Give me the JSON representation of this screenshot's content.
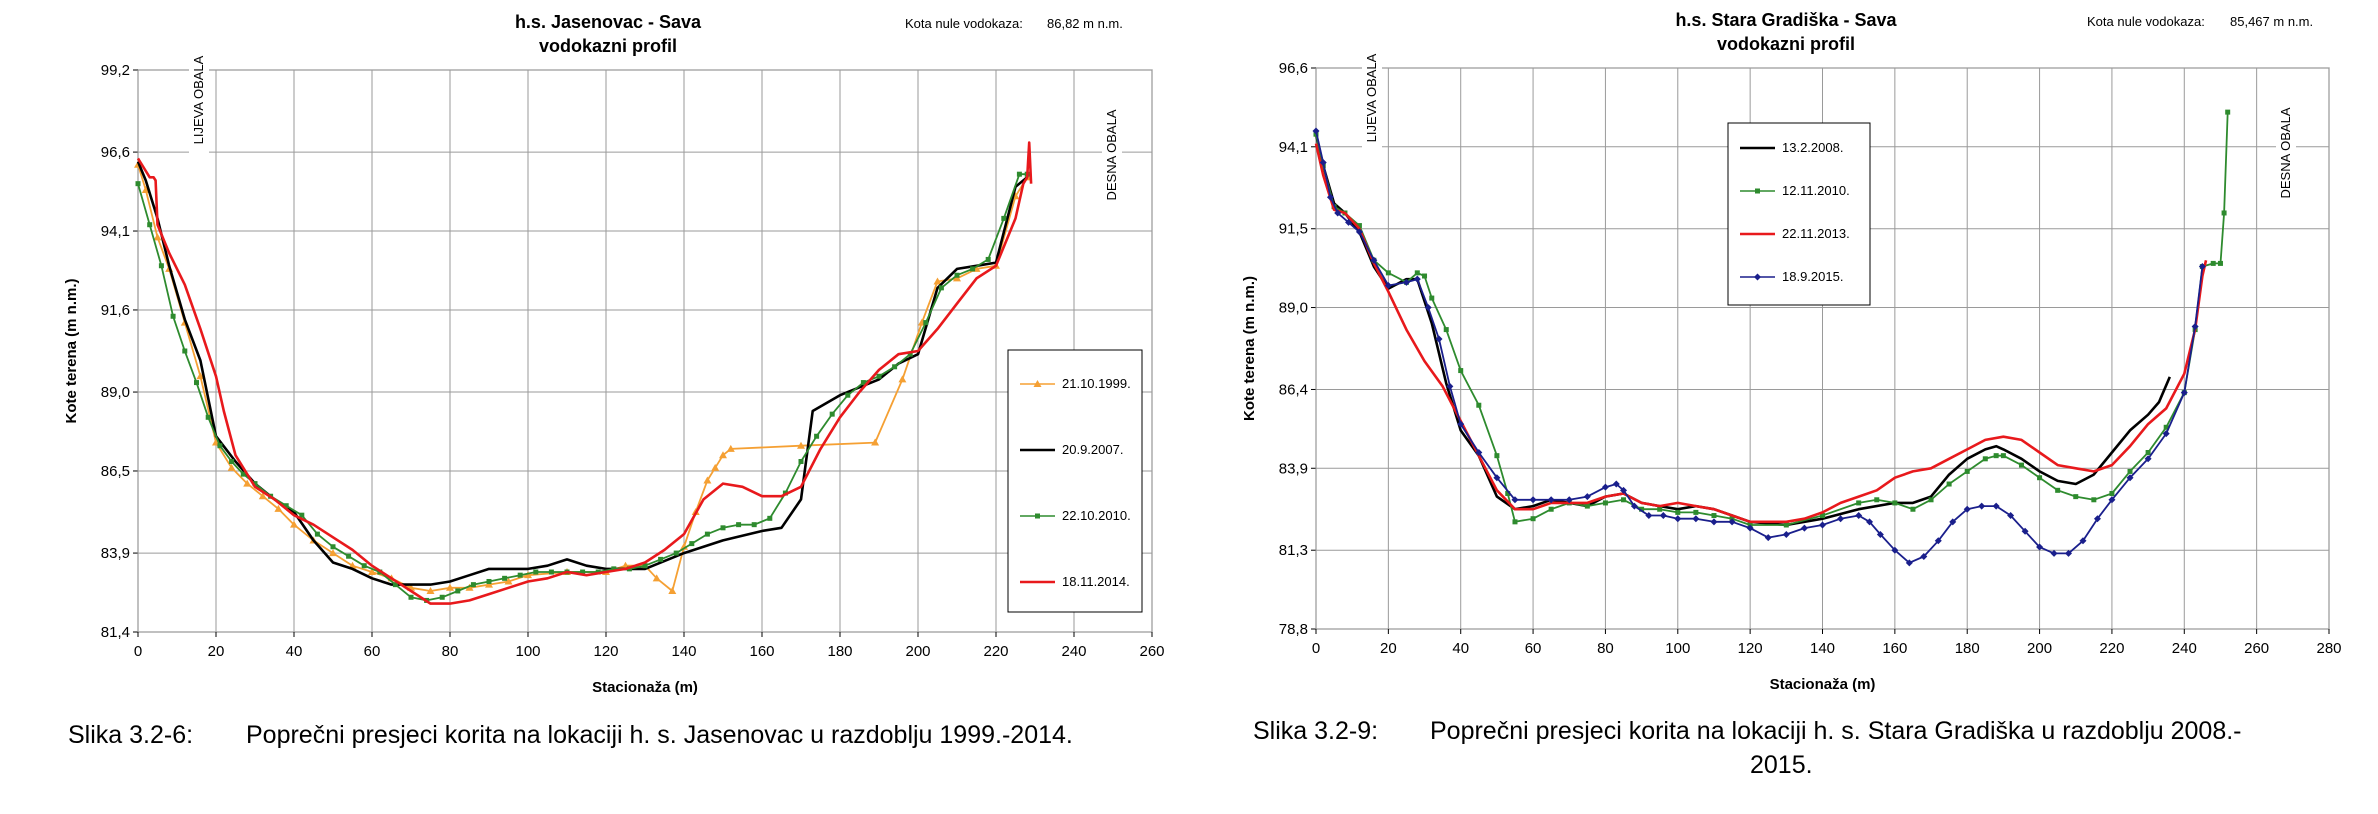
{
  "captions": [
    {
      "label": "Slika 3.2-6:",
      "text": "Poprečni presjeci korita na lokaciji h. s. Jasenovac u razdoblju 1999.-2014.",
      "text2": ""
    },
    {
      "label": "Slika 3.2-9:",
      "text": "Poprečni presjeci korita na lokaciji h. s. Stara Gradiška u razdoblju 2008.-",
      "text2": "2015."
    }
  ],
  "chart_data": [
    {
      "type": "line",
      "title": "h.s. Jasenovac - Sava",
      "subtitle": "vodokazni profil",
      "note_label": "Kota nule vodokaza:",
      "note_value": "86,82 m n.m.",
      "xlabel": "Stacionaža (m)",
      "ylabel": "Kote terena (m n.m.)",
      "xlim": [
        0,
        260
      ],
      "ylim": [
        81.4,
        99.2
      ],
      "xticks": [
        0,
        20,
        40,
        60,
        80,
        100,
        120,
        140,
        160,
        180,
        200,
        220,
        240,
        260
      ],
      "yticks": [
        81.4,
        83.9,
        86.5,
        89.0,
        91.6,
        94.1,
        96.6,
        99.2
      ],
      "ytick_labels": [
        "81,4",
        "83,9",
        "86,5",
        "89,0",
        "91,6",
        "94,1",
        "96,6",
        "99,2"
      ],
      "bank_left": "LIJEVA OBALA",
      "bank_right": "DESNA OBALA",
      "legend_position": "right",
      "series": [
        {
          "name": "21.10.1999.",
          "color": "#f5a033",
          "marker": "triangle",
          "x": [
            0,
            2,
            5,
            8,
            12,
            16,
            20,
            24,
            28,
            32,
            36,
            40,
            45,
            50,
            55,
            60,
            65,
            70,
            75,
            80,
            85,
            90,
            95,
            100,
            110,
            120,
            125,
            130,
            133,
            137,
            140,
            143,
            146,
            148,
            150,
            152,
            170,
            189,
            196,
            201,
            205,
            210,
            215,
            220,
            225,
            228
          ],
          "y": [
            96.2,
            95.4,
            93.9,
            92.9,
            91.2,
            89.5,
            87.4,
            86.6,
            86.1,
            85.7,
            85.3,
            84.8,
            84.3,
            83.9,
            83.5,
            83.3,
            83.1,
            82.8,
            82.7,
            82.8,
            82.8,
            82.9,
            83.0,
            83.2,
            83.3,
            83.3,
            83.5,
            83.5,
            83.1,
            82.7,
            84.1,
            85.2,
            86.2,
            86.6,
            87.0,
            87.2,
            87.3,
            87.4,
            89.4,
            91.2,
            92.5,
            92.6,
            92.9,
            93.0,
            95.2,
            95.8
          ]
        },
        {
          "name": "20.9.2007.",
          "color": "#000000",
          "marker": "none",
          "x": [
            0,
            2,
            5,
            8,
            12,
            16,
            20,
            25,
            30,
            35,
            40,
            45,
            50,
            55,
            60,
            65,
            70,
            75,
            80,
            85,
            90,
            95,
            100,
            105,
            110,
            115,
            120,
            130,
            140,
            150,
            160,
            165,
            170,
            173,
            180,
            190,
            195,
            200,
            205,
            210,
            215,
            220,
            225,
            228
          ],
          "y": [
            96.3,
            95.7,
            94.5,
            93.0,
            91.3,
            90.0,
            87.6,
            86.8,
            86.1,
            85.6,
            85.2,
            84.3,
            83.6,
            83.4,
            83.1,
            82.9,
            82.9,
            82.9,
            83.0,
            83.2,
            83.4,
            83.4,
            83.4,
            83.5,
            83.7,
            83.5,
            83.4,
            83.4,
            83.9,
            84.3,
            84.6,
            84.7,
            85.6,
            88.4,
            88.9,
            89.4,
            89.9,
            90.2,
            92.3,
            92.9,
            93.0,
            93.1,
            95.5,
            95.8
          ]
        },
        {
          "name": "22.10.2010.",
          "color": "#2e8b2e",
          "marker": "square",
          "x": [
            0,
            3,
            6,
            9,
            12,
            15,
            18,
            21,
            24,
            27,
            30,
            34,
            38,
            42,
            46,
            50,
            54,
            58,
            62,
            66,
            70,
            74,
            78,
            82,
            86,
            90,
            94,
            98,
            102,
            106,
            110,
            114,
            118,
            122,
            126,
            130,
            134,
            138,
            142,
            146,
            150,
            154,
            158,
            162,
            166,
            170,
            174,
            178,
            182,
            186,
            190,
            194,
            198,
            202,
            206,
            210,
            214,
            218,
            222,
            226,
            228
          ],
          "y": [
            95.6,
            94.3,
            93.0,
            91.4,
            90.3,
            89.3,
            88.2,
            87.3,
            86.8,
            86.4,
            86.1,
            85.7,
            85.4,
            85.1,
            84.5,
            84.1,
            83.8,
            83.5,
            83.3,
            82.9,
            82.5,
            82.4,
            82.5,
            82.7,
            82.9,
            83.0,
            83.1,
            83.2,
            83.3,
            83.3,
            83.3,
            83.3,
            83.3,
            83.4,
            83.4,
            83.5,
            83.7,
            83.9,
            84.2,
            84.5,
            84.7,
            84.8,
            84.8,
            85.0,
            85.8,
            86.8,
            87.6,
            88.3,
            88.9,
            89.3,
            89.5,
            89.8,
            90.2,
            91.2,
            92.3,
            92.7,
            92.9,
            93.2,
            94.5,
            95.9,
            95.9
          ]
        },
        {
          "name": "18.11.2014.",
          "color": "#e8191c",
          "marker": "none",
          "x": [
            0,
            2,
            3,
            4,
            4.5,
            5,
            8,
            12,
            16,
            20,
            22,
            25,
            30,
            35,
            40,
            45,
            50,
            55,
            60,
            65,
            70,
            75,
            80,
            85,
            90,
            95,
            100,
            105,
            110,
            115,
            120,
            125,
            130,
            135,
            140,
            145,
            150,
            155,
            160,
            165,
            170,
            175,
            180,
            185,
            190,
            195,
            200,
            205,
            210,
            215,
            220,
            225,
            227,
            228,
            228.5,
            229
          ],
          "y": [
            96.4,
            96.0,
            95.8,
            95.8,
            95.7,
            94.3,
            93.4,
            92.4,
            91.0,
            89.5,
            88.4,
            87.0,
            86.0,
            85.6,
            85.1,
            84.8,
            84.4,
            84.0,
            83.5,
            83.1,
            82.7,
            82.3,
            82.3,
            82.4,
            82.6,
            82.8,
            83.0,
            83.1,
            83.3,
            83.2,
            83.3,
            83.4,
            83.6,
            84.0,
            84.5,
            85.6,
            86.1,
            86.0,
            85.7,
            85.7,
            86.0,
            87.2,
            88.2,
            89.0,
            89.7,
            90.2,
            90.3,
            91.0,
            91.8,
            92.6,
            93.0,
            94.5,
            95.6,
            95.8,
            96.9,
            95.6
          ]
        }
      ]
    },
    {
      "type": "line",
      "title": "h.s. Stara Gradiška - Sava",
      "subtitle": "vodokazni profil",
      "note_label": "Kota nule vodokaza:",
      "note_value": "85,467 m n.m.",
      "xlabel": "Stacionaža (m)",
      "ylabel": "Kote terena (m n.m.)",
      "xlim": [
        0,
        280
      ],
      "ylim": [
        78.8,
        96.6
      ],
      "xticks": [
        0,
        20,
        40,
        60,
        80,
        100,
        120,
        140,
        160,
        180,
        200,
        220,
        240,
        260,
        280
      ],
      "yticks": [
        78.8,
        81.3,
        83.9,
        86.4,
        89.0,
        91.5,
        94.1,
        96.6
      ],
      "ytick_labels": [
        "78,8",
        "81,3",
        "83,9",
        "86,4",
        "89,0",
        "91,5",
        "94,1",
        "96,6"
      ],
      "bank_left": "LIJEVA OBALA",
      "bank_right": "DESNA OBALA",
      "legend_position": "top-left",
      "series": [
        {
          "name": "13.2.2008.",
          "color": "#000000",
          "marker": "none",
          "x": [
            0,
            2,
            5,
            8,
            12,
            16,
            20,
            25,
            28,
            32,
            36,
            40,
            45,
            50,
            55,
            60,
            65,
            70,
            75,
            80,
            85,
            90,
            95,
            100,
            105,
            110,
            115,
            120,
            130,
            140,
            150,
            160,
            165,
            170,
            175,
            180,
            185,
            188,
            190,
            195,
            200,
            205,
            210,
            215,
            220,
            225,
            230,
            233,
            236
          ],
          "y": [
            94.5,
            93.5,
            92.3,
            92.0,
            91.4,
            90.3,
            89.6,
            89.9,
            89.9,
            88.5,
            86.6,
            85.1,
            84.3,
            83.0,
            82.6,
            82.7,
            82.9,
            82.8,
            82.7,
            83.0,
            83.1,
            82.8,
            82.7,
            82.6,
            82.7,
            82.6,
            82.4,
            82.2,
            82.1,
            82.3,
            82.6,
            82.8,
            82.8,
            83.0,
            83.7,
            84.2,
            84.5,
            84.6,
            84.5,
            84.2,
            83.8,
            83.5,
            83.4,
            83.7,
            84.4,
            85.1,
            85.6,
            86.0,
            86.8
          ]
        },
        {
          "name": "12.11.2010.",
          "color": "#2e8b2e",
          "marker": "square",
          "x": [
            0,
            2,
            5,
            8,
            12,
            16,
            20,
            25,
            28,
            30,
            32,
            36,
            40,
            45,
            50,
            53,
            55,
            60,
            65,
            70,
            75,
            80,
            85,
            90,
            95,
            100,
            105,
            110,
            115,
            120,
            130,
            140,
            150,
            155,
            160,
            165,
            170,
            175,
            180,
            185,
            188,
            190,
            195,
            200,
            205,
            210,
            215,
            220,
            225,
            230,
            235,
            240,
            243,
            245,
            248,
            250,
            251,
            252
          ],
          "y": [
            94.5,
            93.5,
            92.2,
            92.0,
            91.6,
            90.5,
            90.1,
            89.8,
            90.1,
            90.0,
            89.3,
            88.3,
            87.0,
            85.9,
            84.3,
            83.1,
            82.2,
            82.3,
            82.6,
            82.8,
            82.7,
            82.8,
            82.9,
            82.6,
            82.6,
            82.5,
            82.5,
            82.4,
            82.3,
            82.1,
            82.1,
            82.4,
            82.8,
            82.9,
            82.8,
            82.6,
            82.9,
            83.4,
            83.8,
            84.2,
            84.3,
            84.3,
            84.0,
            83.6,
            83.2,
            83.0,
            82.9,
            83.1,
            83.8,
            84.4,
            85.2,
            86.3,
            88.3,
            90.3,
            90.4,
            90.4,
            92.0,
            95.2
          ]
        },
        {
          "name": "22.11.2013.",
          "color": "#e8191c",
          "marker": "none",
          "x": [
            0,
            2,
            5,
            8,
            12,
            16,
            20,
            25,
            30,
            35,
            40,
            45,
            50,
            55,
            60,
            65,
            70,
            75,
            80,
            85,
            90,
            95,
            100,
            105,
            110,
            115,
            120,
            125,
            130,
            135,
            140,
            145,
            150,
            155,
            160,
            165,
            170,
            175,
            180,
            185,
            190,
            195,
            200,
            205,
            210,
            215,
            220,
            225,
            230,
            235,
            240,
            243,
            245,
            246
          ],
          "y": [
            94.2,
            93.2,
            92.1,
            92.0,
            91.5,
            90.4,
            89.5,
            88.3,
            87.3,
            86.5,
            85.4,
            84.3,
            83.2,
            82.6,
            82.6,
            82.8,
            82.8,
            82.8,
            83.0,
            83.1,
            82.8,
            82.7,
            82.8,
            82.7,
            82.6,
            82.4,
            82.2,
            82.2,
            82.2,
            82.3,
            82.5,
            82.8,
            83.0,
            83.2,
            83.6,
            83.8,
            83.9,
            84.2,
            84.5,
            84.8,
            84.9,
            84.8,
            84.4,
            84.0,
            83.9,
            83.8,
            84.0,
            84.6,
            85.3,
            85.8,
            86.9,
            88.3,
            90.0,
            90.5
          ]
        },
        {
          "name": "18.9.2015.",
          "color": "#1a1f8c",
          "marker": "diamond",
          "x": [
            0,
            2,
            4,
            6,
            9,
            12,
            16,
            20,
            25,
            28,
            31,
            34,
            37,
            40,
            45,
            50,
            55,
            60,
            65,
            70,
            75,
            80,
            83,
            85,
            88,
            92,
            96,
            100,
            105,
            110,
            115,
            120,
            125,
            130,
            135,
            140,
            145,
            150,
            153,
            156,
            160,
            164,
            168,
            172,
            176,
            180,
            184,
            188,
            192,
            196,
            200,
            204,
            208,
            212,
            216,
            220,
            225,
            230,
            235,
            240,
            243,
            245
          ],
          "y": [
            94.6,
            93.6,
            92.5,
            92.0,
            91.7,
            91.4,
            90.5,
            89.7,
            89.8,
            89.9,
            89.0,
            88.0,
            86.5,
            85.3,
            84.4,
            83.6,
            82.9,
            82.9,
            82.9,
            82.9,
            83.0,
            83.3,
            83.4,
            83.2,
            82.7,
            82.4,
            82.4,
            82.3,
            82.3,
            82.2,
            82.2,
            82.0,
            81.7,
            81.8,
            82.0,
            82.1,
            82.3,
            82.4,
            82.2,
            81.8,
            81.3,
            80.9,
            81.1,
            81.6,
            82.2,
            82.6,
            82.7,
            82.7,
            82.4,
            81.9,
            81.4,
            81.2,
            81.2,
            81.6,
            82.3,
            82.9,
            83.6,
            84.2,
            85.0,
            86.3,
            88.4,
            90.3
          ]
        }
      ]
    }
  ]
}
